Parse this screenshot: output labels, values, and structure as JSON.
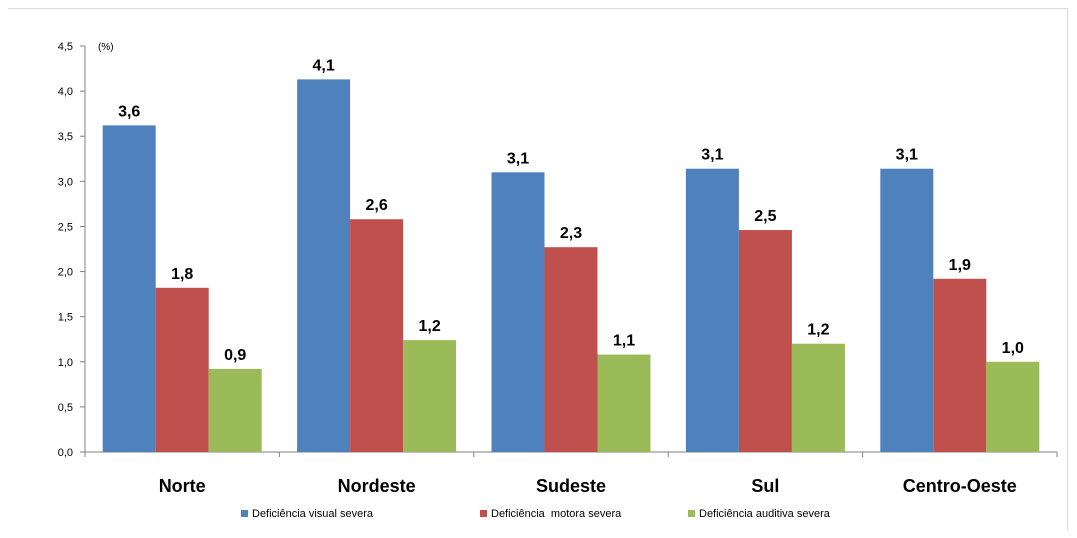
{
  "chart_data": {
    "type": "bar",
    "unit_label": "(%)",
    "categories": [
      "Norte",
      "Nordeste",
      "Sudeste",
      "Sul",
      "Centro-Oeste"
    ],
    "ylim": [
      0,
      4.5
    ],
    "yticks": [
      "0,0",
      "0,5",
      "1,0",
      "1,5",
      "2,0",
      "2,5",
      "3,0",
      "3,5",
      "4,0",
      "4,5"
    ],
    "grid": false,
    "legend_position": "bottom",
    "series": [
      {
        "name": "Deficiência visual severa",
        "color": "#4f81bd",
        "values": [
          3.62,
          4.13,
          3.1,
          3.14,
          3.14
        ],
        "labels": [
          "3,6",
          "4,1",
          "3,1",
          "3,1",
          "3,1"
        ]
      },
      {
        "name": "Deficiência  motora severa",
        "color": "#c0504d",
        "values": [
          1.82,
          2.58,
          2.27,
          2.46,
          1.92
        ],
        "labels": [
          "1,8",
          "2,6",
          "2,3",
          "2,5",
          "1,9"
        ]
      },
      {
        "name": "Deficiência auditiva severa",
        "color": "#9bbb59",
        "values": [
          0.92,
          1.24,
          1.08,
          1.2,
          1.0
        ],
        "labels": [
          "0,9",
          "1,2",
          "1,1",
          "1,2",
          "1,0"
        ]
      }
    ]
  }
}
